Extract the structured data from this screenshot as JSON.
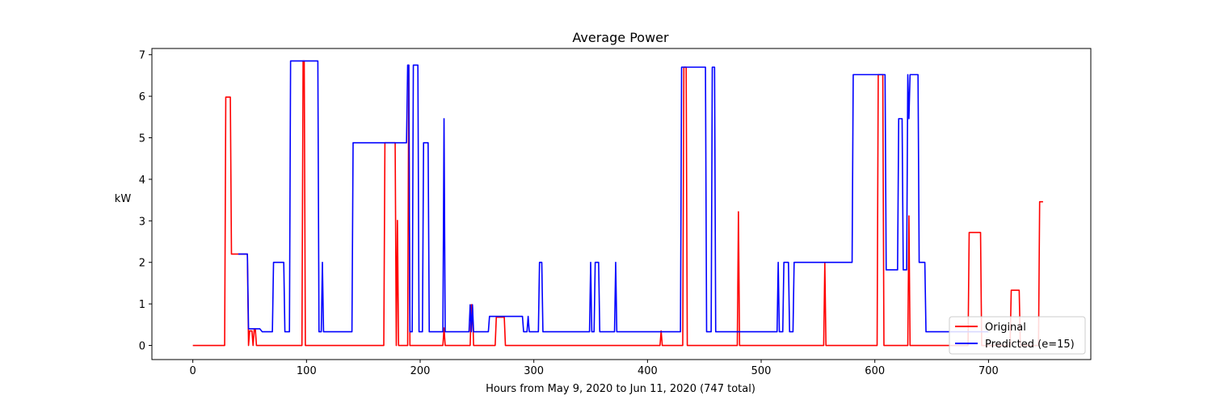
{
  "chart_data": {
    "type": "line",
    "title": "Average Power",
    "xlabel": "Hours from May 9, 2020 to Jun 11, 2020 (747 total)",
    "ylabel": "kW",
    "xlim": [
      -36,
      790
    ],
    "ylim": [
      -0.34,
      7.15
    ],
    "xticks": [
      0,
      100,
      200,
      300,
      400,
      500,
      600,
      700
    ],
    "yticks": [
      0,
      1,
      2,
      3,
      4,
      5,
      6,
      7
    ],
    "grid": false,
    "legend_position": "lower-right",
    "series": [
      {
        "name": "Original",
        "color": "#ff0000",
        "points": [
          [
            0,
            0
          ],
          [
            28,
            0
          ],
          [
            29,
            5.98
          ],
          [
            33,
            5.98
          ],
          [
            34,
            2.2
          ],
          [
            48,
            2.2
          ],
          [
            49,
            0
          ],
          [
            50,
            0.35
          ],
          [
            52,
            0.35
          ],
          [
            53,
            0
          ],
          [
            54,
            0.38
          ],
          [
            55,
            0.38
          ],
          [
            56,
            0
          ],
          [
            96,
            0
          ],
          [
            97,
            6.85
          ],
          [
            98,
            6.85
          ],
          [
            99,
            0
          ],
          [
            168,
            0
          ],
          [
            169,
            4.88
          ],
          [
            178,
            4.88
          ],
          [
            179,
            0
          ],
          [
            180,
            3.01
          ],
          [
            181,
            0
          ],
          [
            189,
            0
          ],
          [
            190,
            6.75
          ],
          [
            191,
            0
          ],
          [
            220,
            0
          ],
          [
            221,
            0.42
          ],
          [
            222,
            0
          ],
          [
            244,
            0
          ],
          [
            245,
            0.98
          ],
          [
            246,
            0.98
          ],
          [
            247,
            0
          ],
          [
            266,
            0
          ],
          [
            267,
            0.68
          ],
          [
            274,
            0.68
          ],
          [
            275,
            0
          ],
          [
            411,
            0
          ],
          [
            412,
            0.35
          ],
          [
            413,
            0
          ],
          [
            431,
            0
          ],
          [
            432,
            6.7
          ],
          [
            434,
            6.7
          ],
          [
            435,
            0
          ],
          [
            479,
            0
          ],
          [
            480,
            3.22
          ],
          [
            481,
            0
          ],
          [
            555,
            0
          ],
          [
            556,
            2.0
          ],
          [
            557,
            0
          ],
          [
            602,
            0
          ],
          [
            603,
            6.52
          ],
          [
            607,
            6.52
          ],
          [
            608,
            0
          ],
          [
            610,
            0
          ],
          [
            629,
            0
          ],
          [
            630,
            3.12
          ],
          [
            631,
            0
          ],
          [
            682,
            0
          ],
          [
            683,
            2.72
          ],
          [
            693,
            2.72
          ],
          [
            694,
            0
          ],
          [
            719,
            0
          ],
          [
            720,
            1.33
          ],
          [
            727,
            1.33
          ],
          [
            728,
            0
          ],
          [
            744,
            0
          ],
          [
            745,
            3.46
          ],
          [
            748,
            3.46
          ]
        ]
      },
      {
        "name": "Predicted (e=15)",
        "color": "#0000ff",
        "points": [
          [
            40,
            2.2
          ],
          [
            48,
            2.2
          ],
          [
            49,
            0.4
          ],
          [
            59,
            0.4
          ],
          [
            61,
            0.33
          ],
          [
            70,
            0.33
          ],
          [
            71,
            2.0
          ],
          [
            80,
            2.0
          ],
          [
            81,
            0.33
          ],
          [
            85,
            0.33
          ],
          [
            86,
            6.85
          ],
          [
            110,
            6.85
          ],
          [
            111,
            0.33
          ],
          [
            113,
            0.33
          ],
          [
            114,
            2.0
          ],
          [
            115,
            0.33
          ],
          [
            140,
            0.33
          ],
          [
            141,
            4.88
          ],
          [
            188,
            4.88
          ],
          [
            189,
            6.75
          ],
          [
            190,
            6.75
          ],
          [
            191,
            0.33
          ],
          [
            193,
            0.33
          ],
          [
            194,
            6.75
          ],
          [
            198,
            6.75
          ],
          [
            199,
            0.33
          ],
          [
            202,
            0.33
          ],
          [
            203,
            4.88
          ],
          [
            207,
            4.88
          ],
          [
            208,
            0.33
          ],
          [
            220,
            0.33
          ],
          [
            221,
            5.46
          ],
          [
            222,
            0.33
          ],
          [
            243,
            0.33
          ],
          [
            244,
            0.98
          ],
          [
            245,
            0.33
          ],
          [
            246,
            0.98
          ],
          [
            247,
            0.33
          ],
          [
            260,
            0.33
          ],
          [
            261,
            0.7
          ],
          [
            290,
            0.7
          ],
          [
            291,
            0.33
          ],
          [
            294,
            0.33
          ],
          [
            295,
            0.7
          ],
          [
            296,
            0.33
          ],
          [
            304,
            0.33
          ],
          [
            305,
            2.0
          ],
          [
            307,
            2.0
          ],
          [
            308,
            0.33
          ],
          [
            349,
            0.33
          ],
          [
            350,
            2.0
          ],
          [
            351,
            0.33
          ],
          [
            353,
            0.33
          ],
          [
            354,
            2.0
          ],
          [
            357,
            2.0
          ],
          [
            358,
            0.33
          ],
          [
            371,
            0.33
          ],
          [
            372,
            2.0
          ],
          [
            373,
            0.33
          ],
          [
            429,
            0.33
          ],
          [
            430,
            6.7
          ],
          [
            451,
            6.7
          ],
          [
            452,
            0.33
          ],
          [
            456,
            0.33
          ],
          [
            457,
            6.7
          ],
          [
            459,
            6.7
          ],
          [
            460,
            0.33
          ],
          [
            470,
            0.33
          ],
          [
            514,
            0.33
          ],
          [
            515,
            2.0
          ],
          [
            516,
            0.33
          ],
          [
            519,
            0.33
          ],
          [
            520,
            2.0
          ],
          [
            524,
            2.0
          ],
          [
            525,
            0.33
          ],
          [
            528,
            0.33
          ],
          [
            529,
            2.0
          ],
          [
            580,
            2.0
          ],
          [
            581,
            6.52
          ],
          [
            609,
            6.52
          ],
          [
            610,
            1.82
          ],
          [
            620,
            1.82
          ],
          [
            621,
            5.46
          ],
          [
            624,
            5.46
          ],
          [
            625,
            1.82
          ],
          [
            628,
            1.82
          ],
          [
            629,
            6.52
          ],
          [
            630,
            5.46
          ],
          [
            631,
            6.52
          ],
          [
            638,
            6.52
          ],
          [
            639,
            2.0
          ],
          [
            644,
            2.0
          ],
          [
            645,
            0.33
          ],
          [
            700,
            0.33
          ]
        ]
      }
    ]
  }
}
